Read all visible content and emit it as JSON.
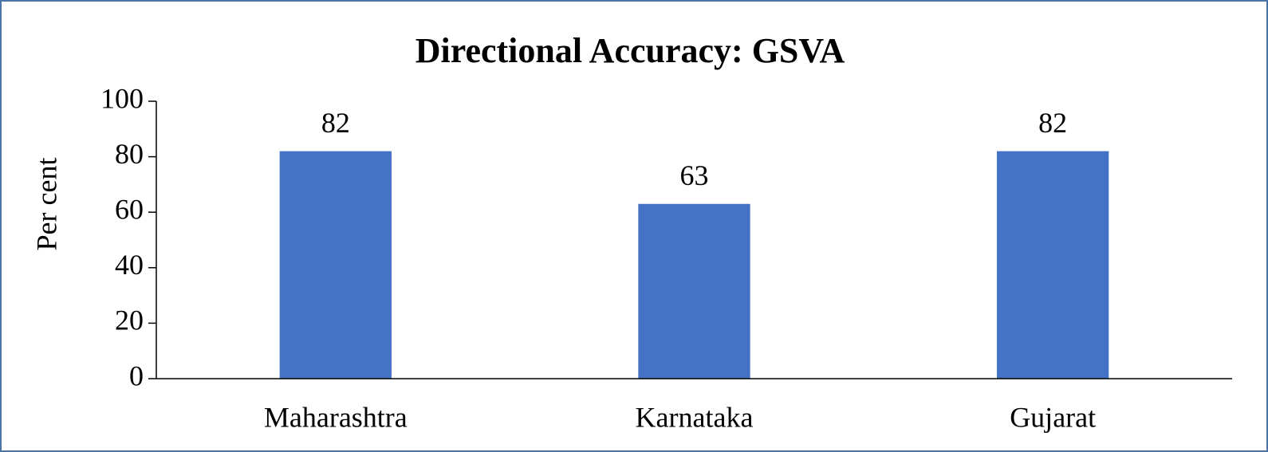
{
  "chart_data": {
    "type": "bar",
    "title": "Directional Accuracy: GSVA",
    "y_label": "Per cent",
    "categories": [
      "Maharashtra",
      "Karnataka",
      "Gujarat"
    ],
    "values": [
      82,
      63,
      82
    ],
    "color": "#4472c4",
    "ylim": [
      0,
      100
    ],
    "yticks": [
      0,
      20,
      40,
      60,
      80,
      100
    ],
    "grid": false,
    "data_labels": true
  }
}
